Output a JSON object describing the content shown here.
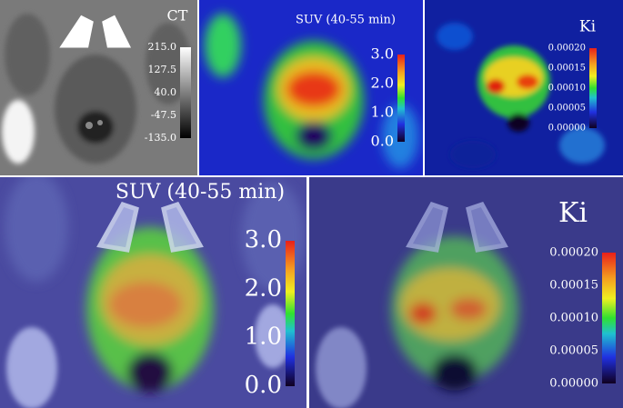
{
  "panels": [
    {
      "title": "CT",
      "ticks": [
        "215.0",
        "127.5",
        "40.0",
        "-47.5",
        "-135.0"
      ]
    },
    {
      "title": "SUV (40-55 min)",
      "ticks": [
        "3.0",
        "2.0",
        "1.0",
        "0.0"
      ]
    },
    {
      "title": "Ki",
      "ticks": [
        "0.00020",
        "0.00015",
        "0.00010",
        "0.00005",
        "0.00000"
      ]
    },
    {
      "title": "SUV (40-55 min)",
      "ticks": [
        "3.0",
        "2.0",
        "1.0",
        "0.0"
      ]
    },
    {
      "title": "Ki",
      "ticks": [
        "0.00020",
        "0.00015",
        "0.00010",
        "0.00005",
        "0.00000"
      ]
    }
  ]
}
